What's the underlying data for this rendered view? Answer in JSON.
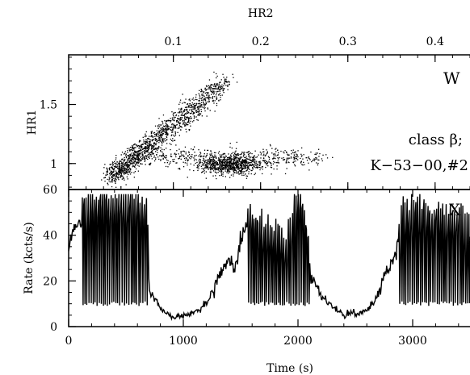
{
  "chart_data": [
    {
      "type": "scatter",
      "panel_letter": "W",
      "annotations": [
        "class β;",
        "K−53−00,#2"
      ],
      "xlabel": "HR2",
      "ylabel": "HR1",
      "xlim": [
        -0.02,
        0.44
      ],
      "ylim": [
        0.78,
        1.92
      ],
      "x_ticks": [
        0.1,
        0.2,
        0.3,
        0.4
      ],
      "x_tick_labels": [
        "0.1",
        "0.2",
        "0.3",
        "0.4"
      ],
      "y_ticks": [
        1.0,
        1.5
      ],
      "y_tick_labels": [
        "1",
        "1.5"
      ],
      "x_axis_position": "top",
      "grid": false,
      "clusters": [
        {
          "name": "upper-branch",
          "x_range": [
            0.03,
            0.16
          ],
          "y_range": [
            0.9,
            1.7
          ],
          "count": 1400
        },
        {
          "name": "lower-branch",
          "x_range": [
            0.05,
            0.27
          ],
          "y_range": [
            0.85,
            1.15
          ],
          "count": 1300
        }
      ]
    },
    {
      "type": "line",
      "panel_letter": "X",
      "xlabel": "Time (s)",
      "ylabel": "Rate (kcts/s)",
      "xlim": [
        0,
        3500
      ],
      "ylim": [
        0,
        60
      ],
      "x_ticks": [
        0,
        1000,
        2000,
        3000
      ],
      "x_tick_labels": [
        "0",
        "1000",
        "2000",
        "3000"
      ],
      "y_ticks": [
        0,
        20,
        40,
        60
      ],
      "y_tick_labels": [
        "0",
        "20",
        "40",
        "60"
      ],
      "grid": false,
      "envelope": {
        "time": [
          0,
          60,
          200,
          400,
          680,
          700,
          800,
          900,
          1000,
          1100,
          1150,
          1200,
          1300,
          1400,
          1450,
          1500,
          1550,
          1600,
          1900,
          2000,
          2020,
          2100,
          2200,
          2400,
          2600,
          2700,
          2800,
          2860,
          2900,
          3000,
          3200,
          3500
        ],
        "rate": [
          35,
          45,
          48,
          50,
          47,
          17,
          8,
          4,
          5,
          6,
          8,
          10,
          20,
          30,
          24,
          38,
          45,
          40,
          32,
          50,
          52,
          25,
          13,
          5,
          7,
          14,
          28,
          32,
          44,
          45,
          43,
          40
        ]
      },
      "spike_intervals": [
        [
          120,
          680
        ],
        [
          1560,
          2100
        ],
        [
          2880,
          3500
        ]
      ],
      "spike_floor": 9
    }
  ]
}
